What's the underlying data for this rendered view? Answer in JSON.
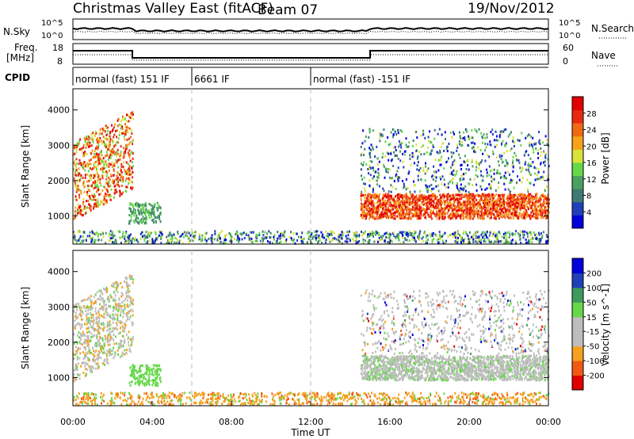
{
  "header": {
    "title": "Christmas Valley East (fitACF)",
    "beam": "Beam 07",
    "date": "19/Nov/2012"
  },
  "panels": {
    "nsky": {
      "label": "N.Sky",
      "ticks": [
        "10^5",
        "10^0"
      ]
    },
    "nsearch": {
      "label": "N.Search",
      "ticks": [
        "10^5",
        "10^0"
      ]
    },
    "freq": {
      "label_line1": "Freq.",
      "label_line2": "[MHz]",
      "ticks": [
        "18",
        "8"
      ]
    },
    "nave": {
      "label": "Nave",
      "ticks": [
        "60",
        "0"
      ]
    },
    "cpid": {
      "label": "CPID",
      "segments": [
        {
          "start": 0.0,
          "end": 6.0,
          "text": "normal (fast) 151 IF"
        },
        {
          "start": 6.0,
          "end": 12.0,
          "text": "6661 IF"
        },
        {
          "start": 12.0,
          "end": 24.0,
          "text": "normal (fast) -151 IF"
        }
      ]
    }
  },
  "chart_data": [
    {
      "type": "heatmap",
      "name": "power",
      "ylabel": "Slant Range [km]",
      "yticks": [
        1000,
        2000,
        3000,
        4000
      ],
      "ylim": [
        200,
        4600
      ],
      "colorbar": {
        "label": "Power [dB]",
        "ticks": [
          "28",
          "24",
          "20",
          "16",
          "12",
          "8",
          "4"
        ],
        "colors": [
          "#0000dd",
          "#203fb8",
          "#3f7b73",
          "#4aa060",
          "#66d84a",
          "#d8e23a",
          "#f6a21b",
          "#f06a14",
          "#ea2a10",
          "#e00000"
        ]
      }
    },
    {
      "type": "heatmap",
      "name": "velocity",
      "ylabel": "Slant Range [km]",
      "yticks": [
        1000,
        2000,
        3000,
        4000
      ],
      "ylim": [
        200,
        4600
      ],
      "colorbar": {
        "label": "Velocity [m s^-1]",
        "ticks": [
          "200",
          "100",
          "50",
          "15",
          "-15",
          "-50",
          "-100",
          "-200"
        ],
        "colors": [
          "#e00000",
          "#f05a14",
          "#f5a020",
          "#bdbdbd",
          "#bdbdbd",
          "#66d84a",
          "#3f9a5e",
          "#2040b8",
          "#0000dd"
        ]
      }
    }
  ],
  "xaxis": {
    "label": "Time UT",
    "ticks": [
      "00:00",
      "04:00",
      "08:00",
      "12:00",
      "16:00",
      "20:00",
      "00:00"
    ],
    "range_hours": [
      0,
      24
    ]
  }
}
